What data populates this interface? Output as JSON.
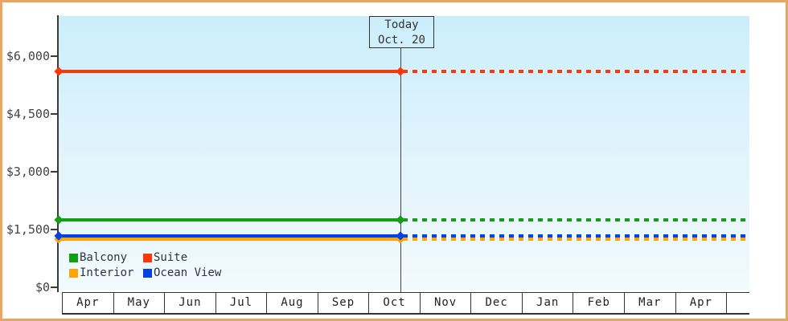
{
  "today_box": {
    "line1": "Today",
    "line2": "Oct. 20"
  },
  "y_axis": {
    "tick_labels": [
      "$0",
      "$1,500",
      "$3,000",
      "$4,500",
      "$6,000"
    ],
    "tick_values": [
      0,
      1500,
      3000,
      4500,
      6000
    ]
  },
  "x_axis": {
    "months": [
      "Apr",
      "May",
      "Jun",
      "Jul",
      "Aug",
      "Sep",
      "Oct",
      "Nov",
      "Dec",
      "Jan",
      "Feb",
      "Mar",
      "Apr"
    ]
  },
  "legend": {
    "items": [
      {
        "label": "Balcony",
        "color": "#12a012"
      },
      {
        "label": "Suite",
        "color": "#fb3705"
      },
      {
        "label": "Interior",
        "color": "#ffa503"
      },
      {
        "label": "Ocean View",
        "color": "#0440e8"
      }
    ]
  },
  "colors": {
    "frame_border": "#eaa55f",
    "axis": "#3a3a3a",
    "plot_bg_top": "#cbeefb",
    "plot_bg_bottom": "#f2fafd"
  },
  "chart_data": {
    "type": "line",
    "x_categories": [
      "Apr",
      "May",
      "Jun",
      "Jul",
      "Aug",
      "Sep",
      "Oct",
      "Nov",
      "Dec",
      "Jan",
      "Feb",
      "Mar",
      "Apr"
    ],
    "ylim": [
      0,
      6000
    ],
    "y_ticks": [
      0,
      1500,
      3000,
      4500,
      6000
    ],
    "y_tick_labels": [
      "$0",
      "$1,500",
      "$3,000",
      "$4,500",
      "$6,000"
    ],
    "grid": false,
    "legend_position": "inside-bottom-left",
    "series": [
      {
        "name": "Balcony",
        "color": "#12a012",
        "value": 1750,
        "shape": "constant-horizontal"
      },
      {
        "name": "Suite",
        "color": "#fb3705",
        "value": 5600,
        "shape": "constant-horizontal"
      },
      {
        "name": "Interior",
        "color": "#ffa503",
        "value": 1250,
        "shape": "constant-horizontal"
      },
      {
        "name": "Ocean View",
        "color": "#0440e8",
        "value": 1330,
        "shape": "constant-horizontal"
      }
    ],
    "today": {
      "label": "Today",
      "date": "Oct. 20",
      "month": "Oct",
      "day": 20
    },
    "notes": "Flat price lines: solid from Apr to today (Oct. 20), dotted projection from today to right edge. Interior line sits just beneath Ocean View line. Diamond markers at left axis and at today line."
  }
}
